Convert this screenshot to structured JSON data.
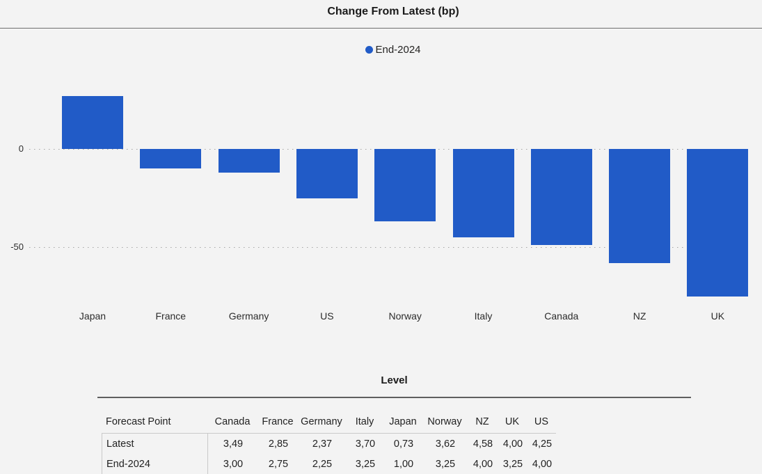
{
  "page": {
    "background": "#f3f3f3",
    "accent_blue": "#215bc7"
  },
  "chart": {
    "title": "Change From Latest (bp)",
    "legend": {
      "label": "End-2024",
      "swatch_color": "#215bc7",
      "swatch_icon": "filled-circle"
    }
  },
  "chart_data": {
    "type": "bar",
    "title": "Change From Latest (bp)",
    "categories": [
      "Japan",
      "France",
      "Germany",
      "US",
      "Norway",
      "Italy",
      "Canada",
      "NZ",
      "UK"
    ],
    "series": [
      {
        "name": "End-2024",
        "values": [
          27,
          -10,
          -12,
          -25,
          -37,
          -45,
          -49,
          -58,
          -75
        ]
      }
    ],
    "xlabel": "",
    "ylabel": "",
    "yticks": [
      0,
      -50
    ],
    "ylim": [
      -80,
      30
    ],
    "grid": "horizontal-dotted",
    "legend_position": "top-center",
    "bar_color": "#215bc7"
  },
  "table": {
    "title": "Level",
    "columns": [
      "Forecast Point",
      "Canada",
      "France",
      "Germany",
      "Italy",
      "Japan",
      "Norway",
      "NZ",
      "UK",
      "US"
    ],
    "rows": [
      {
        "label": "Latest",
        "values": [
          "3,49",
          "2,85",
          "2,37",
          "3,70",
          "0,73",
          "3,62",
          "4,58",
          "4,00",
          "4,25"
        ]
      },
      {
        "label": "End-2024",
        "values": [
          "3,00",
          "2,75",
          "2,25",
          "3,25",
          "1,00",
          "3,25",
          "4,00",
          "3,25",
          "4,00"
        ]
      }
    ]
  }
}
